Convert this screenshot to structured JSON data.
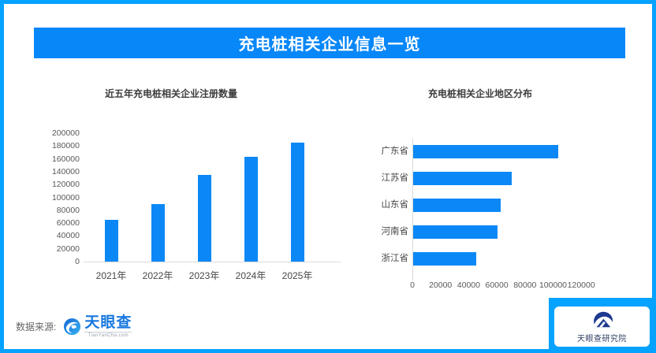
{
  "banner": {
    "title": "充电桩相关企业信息一览"
  },
  "colors": {
    "frame_border": "#05A2FF",
    "banner_background": "#0787F8",
    "bar_fill": "#0B88F6",
    "tianyancha_blue": "#1878DF",
    "institute_navy": "#1E3A8F"
  },
  "chart_data": [
    {
      "type": "bar",
      "orientation": "vertical",
      "title": "近五年充电桩相关企业注册数量",
      "categories": [
        "2021年",
        "2022年",
        "2023年",
        "2024年",
        "2025年"
      ],
      "values": [
        65000,
        90000,
        135000,
        163000,
        185000
      ],
      "xlabel": "",
      "ylabel": "",
      "ylim": [
        0,
        200000
      ],
      "ytick_step": 20000,
      "grid": false,
      "legend": "none"
    },
    {
      "type": "bar",
      "orientation": "horizontal",
      "title": "充电桩相关企业地区分布",
      "categories": [
        "广东省",
        "江苏省",
        "山东省",
        "河南省",
        "浙江省"
      ],
      "values": [
        103000,
        70000,
        62000,
        60000,
        45000
      ],
      "xlabel": "",
      "ylabel": "",
      "xlim": [
        0,
        120000
      ],
      "xtick_step": 20000,
      "grid": false,
      "legend": "none"
    }
  ],
  "footer": {
    "source_label": "数据来源:",
    "source_logo_text": "天眼查",
    "source_logo_sub": "TianYanCha.com",
    "institute": "天眼查研究院"
  }
}
